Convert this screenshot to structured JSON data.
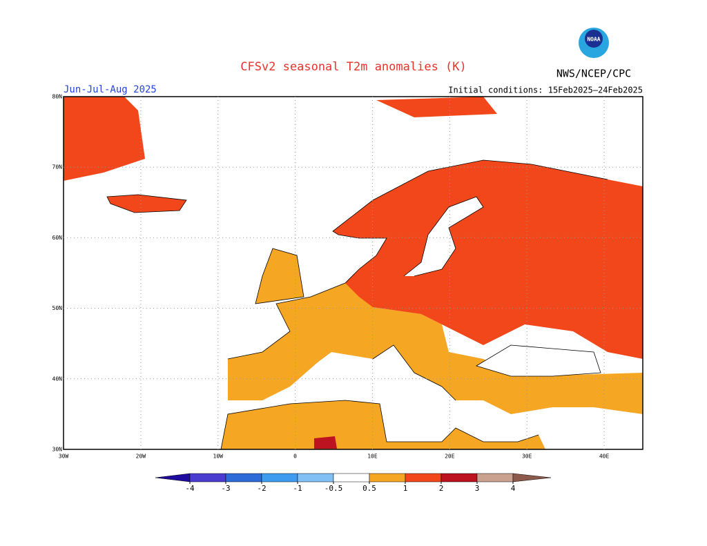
{
  "header": {
    "title": "CFSv2 seasonal T2m anomalies (K)",
    "agency": "NWS/NCEP/CPC",
    "logo_text": "NOAA",
    "period": "Jun-Jul-Aug 2025",
    "initial_conditions": "Initial conditions: 15Feb2025–24Feb2025"
  },
  "map": {
    "lat_labels": [
      "80N",
      "70N",
      "60N",
      "50N",
      "40N",
      "30N"
    ],
    "lon_labels": [
      "30W",
      "20W",
      "10W",
      "0",
      "10E",
      "20E",
      "30E",
      "40E"
    ]
  },
  "colorbar": {
    "levels": [
      -4,
      -3,
      -2,
      -1,
      -0.5,
      0.5,
      1,
      2,
      3,
      4
    ],
    "colors": [
      "#1f0c9e",
      "#4a3ccf",
      "#2c6bd8",
      "#3d9cf0",
      "#80c0f5",
      "#ffffff",
      "#f5a623",
      "#f2471a",
      "#bd1220",
      "#caa08f",
      "#8b5a4a"
    ]
  }
}
